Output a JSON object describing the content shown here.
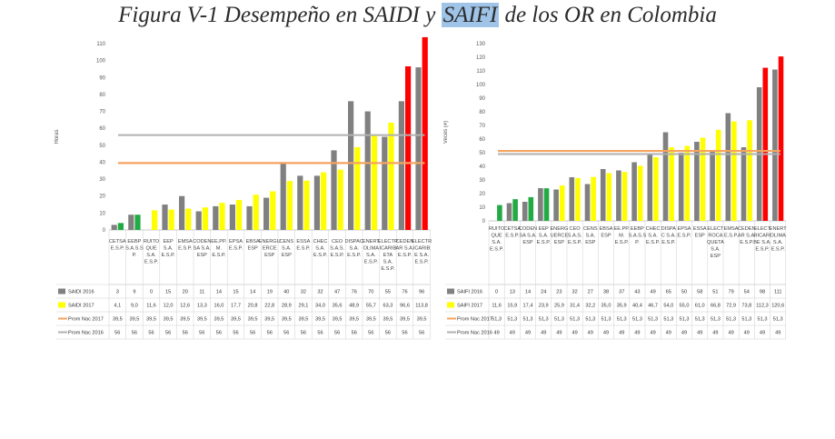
{
  "title": {
    "before": "Figura V-1 Desempeño en SAIDI y ",
    "highlight": "SAIFI",
    "after": " de los OR en Colombia"
  },
  "colors": {
    "saidi2016": "#808080",
    "saidi2017": "#ffff00",
    "prom2017": "#f4a460",
    "prom2016": "#b0b0b0",
    "worst": "#ff0000",
    "best": "#22aa44"
  },
  "chart_data": [
    {
      "type": "bar",
      "ylabel": "Horas",
      "ylim": [
        0,
        110
      ],
      "yticks": [
        0,
        10,
        20,
        30,
        40,
        50,
        60,
        70,
        80,
        90,
        100,
        110
      ],
      "categories": [
        [
          "CETSA",
          "E.S.P."
        ],
        [
          "EEBP",
          "S.A.S.S",
          "P."
        ],
        [
          "RUITO",
          "QUE",
          "S.A.",
          "E.S.P."
        ],
        [
          "EEP",
          "S.A.",
          "E.S.P."
        ],
        [
          "EMSA",
          "E.S.P."
        ],
        [
          "CODEN",
          "SA S.A.",
          "ESP"
        ],
        [
          "EE.PP.",
          "M.",
          "E.S.P."
        ],
        [
          "EPSA",
          "E.S.P."
        ],
        [
          "EBSA",
          "ESP"
        ],
        [
          "ENERGU",
          "ERCE",
          "ESP"
        ],
        [
          "CENS",
          "S.A.",
          "ESP"
        ],
        [
          "ESSA",
          "E.S.P."
        ],
        [
          "CHEC",
          "S.A.",
          "E.S.P."
        ],
        [
          "CEO",
          "S.A.S.",
          "E.S.P."
        ],
        [
          "DISPAC",
          "S.A.",
          "E.S.P."
        ],
        [
          "ENERT",
          "OLIMA",
          "S.A.",
          "E.S.P."
        ],
        [
          "ELECTR",
          "ICARIB",
          "ETA",
          "S.A.",
          "E.S.P."
        ],
        [
          "CEDEN",
          "AR S.A.",
          "E.S.P."
        ],
        [
          "ELECTR",
          "ICARIB",
          "E S.A.",
          "E.S.P."
        ]
      ],
      "series": [
        {
          "name": "SAIDI 2016",
          "values": [
            3,
            9,
            0,
            15,
            20,
            11,
            14,
            15,
            14,
            19,
            40,
            32,
            32,
            47,
            76,
            70,
            55,
            76,
            96
          ]
        },
        {
          "name": "SAIDI 2017",
          "values": [
            4.1,
            9.0,
            11.6,
            12.0,
            12.6,
            13.3,
            16.0,
            17.7,
            20.8,
            22.8,
            28.9,
            29.1,
            34.0,
            35.6,
            48.9,
            55.7,
            63.3,
            96.6,
            113.8
          ]
        },
        {
          "name": "Prom Nac 2017",
          "values": [
            39.5,
            39.5,
            39.5,
            39.5,
            39.5,
            39.5,
            39.5,
            39.5,
            39.5,
            39.5,
            39.5,
            39.5,
            39.5,
            39.5,
            39.5,
            39.5,
            39.5,
            39.5,
            39.5
          ]
        },
        {
          "name": "Prom Nac 2016",
          "values": [
            56,
            56,
            56,
            56,
            56,
            56,
            56,
            56,
            56,
            56,
            56,
            56,
            56,
            56,
            56,
            56,
            56,
            56,
            56
          ]
        }
      ],
      "table_rows": [
        [
          "3",
          "9",
          "0",
          "15",
          "20",
          "11",
          "14",
          "15",
          "14",
          "19",
          "40",
          "32",
          "32",
          "47",
          "76",
          "70",
          "55",
          "76",
          "96"
        ],
        [
          "4,1",
          "9,0",
          "11,6",
          "12,0",
          "12,6",
          "13,3",
          "16,0",
          "17,7",
          "20,8",
          "22,8",
          "28,9",
          "29,1",
          "34,0",
          "35,6",
          "48,9",
          "55,7",
          "63,3",
          "96,6",
          "113,8"
        ],
        [
          "39,5",
          "39,5",
          "39,5",
          "39,5",
          "39,5",
          "39,5",
          "39,5",
          "39,5",
          "39,5",
          "39,5",
          "39,5",
          "39,5",
          "39,5",
          "39,5",
          "39,5",
          "39,5",
          "39,5",
          "39,5",
          "39,5"
        ],
        [
          "56",
          "56",
          "56",
          "56",
          "56",
          "56",
          "56",
          "56",
          "56",
          "56",
          "56",
          "56",
          "56",
          "56",
          "56",
          "56",
          "56",
          "56",
          "56"
        ]
      ],
      "row_labels": [
        "SAIDI 2016",
        "SAIDI 2017",
        "Prom Nac 2017",
        "Prom Nac 2016"
      ]
    },
    {
      "type": "bar",
      "ylabel": "Veces (#)",
      "ylim": [
        0,
        130
      ],
      "yticks": [
        0,
        10,
        20,
        30,
        40,
        50,
        60,
        70,
        80,
        90,
        100,
        110,
        120,
        130
      ],
      "categories": [
        [
          "RUITO",
          "QUE",
          "S.A.",
          "E.S.P."
        ],
        [
          "CETSA",
          "E.S.P."
        ],
        [
          "CODEN",
          "SA S.A.",
          "ESP"
        ],
        [
          "EEP",
          "S.A.",
          "E.S.P."
        ],
        [
          "ENERG",
          "UERCE",
          "ESP"
        ],
        [
          "CEO",
          "S.A.S.",
          "E.S.P."
        ],
        [
          "CENS",
          "S.A.",
          "ESP"
        ],
        [
          "EBSA",
          "ESP"
        ],
        [
          "EE.PP.",
          "M.",
          "E.S.P."
        ],
        [
          "EEBP",
          "S.A.S.S",
          "P."
        ],
        [
          "CHEC",
          "S.A.",
          "E.S.P."
        ],
        [
          "DISPA",
          "C S.A.",
          "E.S.P."
        ],
        [
          "EPSA",
          "E.S.P."
        ],
        [
          "ESSA",
          "ESP"
        ],
        [
          "ELECT",
          "ROCA",
          "QUETA",
          "S.A.",
          "ESP"
        ],
        [
          "EMSA",
          "E.S.P."
        ],
        [
          "CEDEN",
          "AR S.A.",
          "E.S.P."
        ],
        [
          "ELECT",
          "RICARI",
          "BE S.A.",
          "E.S.P."
        ],
        [
          "ENERT",
          "OLIMA",
          "S.A.",
          "E.S.P."
        ]
      ],
      "series": [
        {
          "name": "SAIFI 2016",
          "values": [
            0,
            13,
            14,
            24,
            23,
            32,
            27,
            38,
            37,
            43,
            49,
            65,
            50,
            58,
            51,
            79,
            54,
            98,
            111
          ]
        },
        {
          "name": "SAIFI 2017",
          "values": [
            11.6,
            15.9,
            17.4,
            23.9,
            25.9,
            31.4,
            32.2,
            35.0,
            35.9,
            40.4,
            46.7,
            54.0,
            55.0,
            61.0,
            66.8,
            72.9,
            73.8,
            112.3,
            120.6
          ]
        },
        {
          "name": "Prom Nac 2017",
          "values": [
            51.3,
            51.3,
            51.3,
            51.3,
            51.3,
            51.3,
            51.3,
            51.3,
            51.3,
            51.3,
            51.3,
            51.3,
            51.3,
            51.3,
            51.3,
            51.3,
            51.3,
            51.3,
            51.3
          ]
        },
        {
          "name": "Prom Nac 2016",
          "values": [
            49,
            49,
            49,
            49,
            49,
            49,
            49,
            49,
            49,
            49,
            49,
            49,
            49,
            49,
            49,
            49,
            49,
            49,
            49
          ]
        }
      ],
      "table_rows": [
        [
          "0",
          "13",
          "14",
          "24",
          "23",
          "32",
          "27",
          "38",
          "37",
          "43",
          "49",
          "65",
          "50",
          "58",
          "51",
          "79",
          "54",
          "98",
          "111"
        ],
        [
          "11,6",
          "15,9",
          "17,4",
          "23,9",
          "25,9",
          "31,4",
          "32,2",
          "35,0",
          "35,9",
          "40,4",
          "46,7",
          "54,0",
          "55,0",
          "61,0",
          "66,8",
          "72,9",
          "73,8",
          "112,3",
          "120,6"
        ],
        [
          "51,3",
          "51,3",
          "51,3",
          "51,3",
          "51,3",
          "51,3",
          "51,3",
          "51,3",
          "51,3",
          "51,3",
          "51,3",
          "51,3",
          "51,3",
          "51,3",
          "51,3",
          "51,3",
          "51,3",
          "51,3",
          "51,3"
        ],
        [
          "49",
          "49",
          "49",
          "49",
          "49",
          "49",
          "49",
          "49",
          "49",
          "49",
          "49",
          "49",
          "49",
          "49",
          "49",
          "49",
          "49",
          "49",
          "49"
        ]
      ],
      "row_labels": [
        "SAIFI 2016",
        "SAIFI 2017",
        "Prom Nac 2017",
        "Prom Nac 2016"
      ]
    }
  ]
}
